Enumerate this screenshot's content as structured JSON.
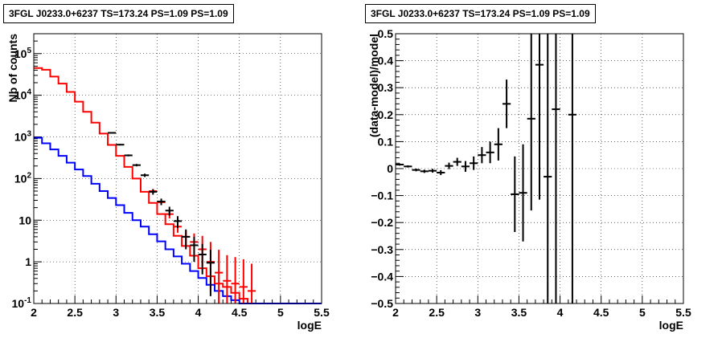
{
  "left": {
    "title": "3FGL J0233.0+6237 TS=173.24 PS=1.09 PS=1.09",
    "chart_data": {
      "type": "line",
      "xlabel": "logE",
      "ylabel": "Nb of counts",
      "xlim": [
        2,
        5.5
      ],
      "ylim": [
        0.1,
        300000
      ],
      "yscale": "log",
      "grid": true,
      "x_ticks": [
        "2",
        "2.5",
        "3",
        "3.5",
        "4",
        "4.5",
        "5",
        "5.5"
      ],
      "y_ticks": [
        "10^-1",
        "1",
        "10",
        "10^2",
        "10^3",
        "10^4",
        "10^5"
      ],
      "bin_edges": [
        2.0,
        2.1,
        2.2,
        2.3,
        2.4,
        2.5,
        2.6,
        2.7,
        2.8,
        2.9,
        3.0,
        3.1,
        3.2,
        3.3,
        3.4,
        3.5,
        3.6,
        3.7,
        3.8,
        3.9,
        4.0,
        4.1,
        4.2,
        4.3,
        4.4,
        4.5,
        4.6,
        4.7,
        4.8,
        4.9,
        5.0,
        5.1,
        5.2,
        5.3,
        5.4,
        5.5
      ],
      "series": [
        {
          "color": "#ff0000",
          "style": "step",
          "values": [
            45000,
            41000,
            28000,
            19000,
            12000,
            7000,
            4000,
            2200,
            1200,
            640,
            350,
            190,
            100,
            48,
            26,
            14,
            8,
            4.2,
            2.4,
            1.4,
            0.7,
            0.45,
            0.3,
            0.25,
            0.18,
            0.13,
            0.1,
            0.1,
            0.1,
            0.1,
            0.1,
            0.1,
            0.1,
            0.1,
            0.1
          ]
        },
        {
          "color": "#0000ff",
          "style": "step",
          "values": [
            950,
            700,
            500,
            350,
            240,
            165,
            115,
            75,
            50,
            34,
            23,
            15,
            10,
            7,
            4.6,
            3.1,
            2,
            1.35,
            0.9,
            0.6,
            0.41,
            0.28,
            0.2,
            0.15,
            0.12,
            0.1,
            0.1,
            0.1,
            0.1,
            0.1,
            0.1,
            0.1,
            0.1,
            0.1,
            0.1
          ]
        },
        {
          "color": "#ff0000",
          "style": "errorbar",
          "x": [
            3.45,
            3.55,
            3.65,
            3.75,
            3.85,
            3.95,
            4.05,
            4.15,
            4.25,
            4.35,
            4.45,
            4.55,
            4.65
          ],
          "y": [
            50,
            27,
            14,
            7,
            4,
            3,
            2,
            1,
            0.55,
            0.35,
            0.3,
            0.25,
            0.2
          ],
          "yerr_low": [
            6,
            4,
            3,
            2,
            1.5,
            1.4,
            1.2,
            0.8,
            0.45,
            0.3,
            0.25,
            0.2,
            0.15
          ],
          "yerr_high": [
            6,
            4,
            3,
            2,
            1.5,
            1.8,
            2.2,
            2,
            1.4,
            1.1,
            1.0,
            0.9,
            0.7
          ]
        },
        {
          "color": "#000000",
          "style": "errorbar",
          "x": [
            2.95,
            3.05,
            3.15,
            3.25,
            3.35,
            3.45,
            3.55,
            3.65,
            3.75,
            3.85,
            3.95,
            4.05,
            4.15
          ],
          "y": [
            1250,
            650,
            360,
            210,
            120,
            48,
            28,
            17,
            9.5,
            4,
            2.5,
            1.5,
            0.95
          ],
          "yerr_low": [
            35,
            25,
            19,
            14,
            11,
            7,
            5,
            4,
            3,
            2,
            1.5,
            1,
            0.8
          ],
          "yerr_high": [
            35,
            25,
            19,
            14,
            11,
            7,
            5,
            4,
            3,
            2,
            1.5,
            1.2,
            1
          ]
        }
      ]
    }
  },
  "right": {
    "title": "3FGL J0233.0+6237 TS=173.24 PS=1.09 PS=1.09",
    "chart_data": {
      "type": "scatter",
      "xlabel": "logE",
      "ylabel": "(data-model)/model",
      "xlim": [
        2,
        5.5
      ],
      "ylim": [
        -0.5,
        0.5
      ],
      "grid": true,
      "x_ticks": [
        "2",
        "2.5",
        "3",
        "3.5",
        "4",
        "4.5",
        "5",
        "5.5"
      ],
      "y_ticks": [
        "−0.5",
        "−0.4",
        "−0.3",
        "−0.2",
        "−0.1",
        "0",
        "0.1",
        "0.2",
        "0.3",
        "0.4",
        "0.5"
      ],
      "series": [
        {
          "color": "#000000",
          "style": "errorbar",
          "x": [
            2.05,
            2.15,
            2.25,
            2.35,
            2.45,
            2.55,
            2.65,
            2.75,
            2.85,
            2.95,
            3.05,
            3.15,
            3.25,
            3.35,
            3.45,
            3.55,
            3.65,
            3.75,
            3.85,
            3.95,
            4.15
          ],
          "y": [
            0.015,
            0.008,
            -0.005,
            -0.01,
            -0.008,
            -0.015,
            0.01,
            0.025,
            0.008,
            0.02,
            0.05,
            0.06,
            0.09,
            0.24,
            -0.095,
            -0.09,
            0.185,
            0.385,
            -0.03,
            0.22,
            0.2
          ],
          "yerr": [
            0.004,
            0.004,
            0.005,
            0.006,
            0.007,
            0.009,
            0.012,
            0.015,
            0.02,
            0.025,
            0.03,
            0.04,
            0.06,
            0.09,
            0.14,
            0.18,
            0.34,
            0.5,
            0.6,
            0.75,
            0.9
          ]
        }
      ]
    }
  }
}
